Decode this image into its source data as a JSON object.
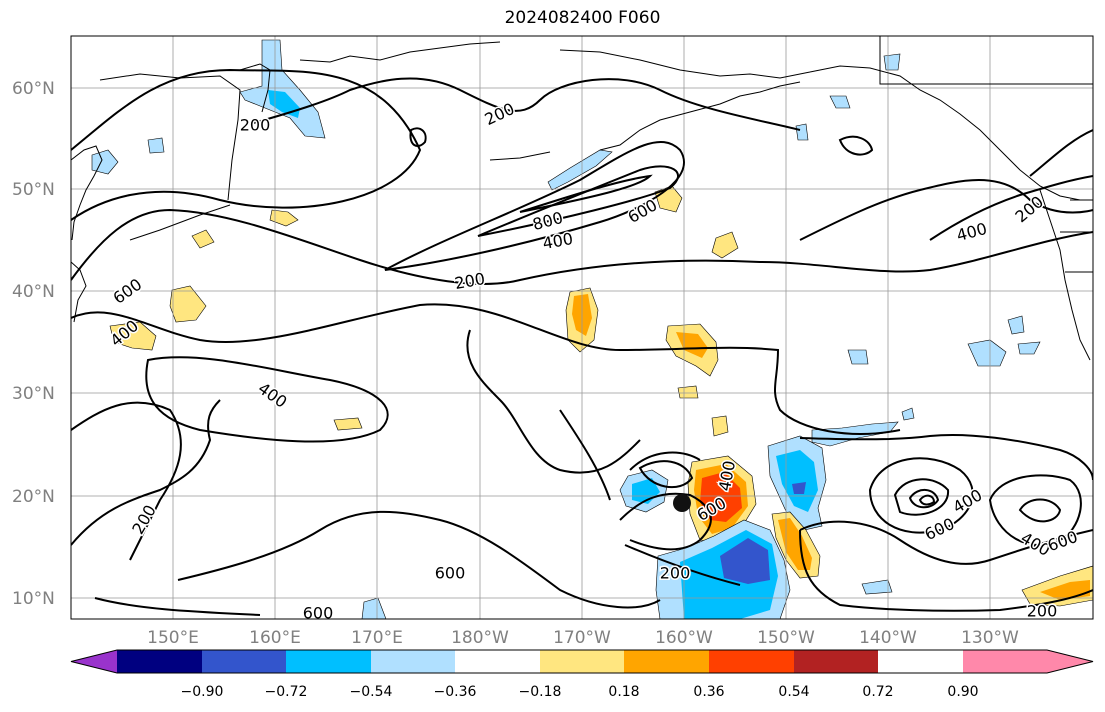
{
  "title": "2024082400 F060",
  "lat_labels": [
    "60°N",
    "50°N",
    "40°N",
    "30°N",
    "20°N",
    "10°N"
  ],
  "lon_labels": [
    "150°E",
    "160°E",
    "170°E",
    "180°W",
    "170°W",
    "160°W",
    "150°W",
    "140°W",
    "130°W"
  ],
  "contour_labels": [
    "200",
    "200",
    "200",
    "200",
    "200",
    "200",
    "200",
    "400",
    "400",
    "400",
    "400",
    "400",
    "400",
    "400",
    "600",
    "600",
    "600",
    "600",
    "600",
    "600",
    "600",
    "800"
  ],
  "colorbar": {
    "labels": [
      "−0.90",
      "−0.72",
      "−0.54",
      "−0.36",
      "−0.18",
      "0.18",
      "0.36",
      "0.54",
      "0.72",
      "0.90"
    ],
    "colors": [
      "#9933cc",
      "#000080",
      "#3355cc",
      "#00bfff",
      "#b0e0ff",
      "#ffffff",
      "#ffe680",
      "#ffa500",
      "#ff4000",
      "#b22222",
      "#ff88aa"
    ]
  },
  "fill_colors": {
    "light_blue": "#b0e0ff",
    "sky_blue": "#00bfff",
    "royal_blue": "#3355cc",
    "light_yellow": "#ffe680",
    "orange": "#ffa500",
    "red_orange": "#ff4000"
  }
}
